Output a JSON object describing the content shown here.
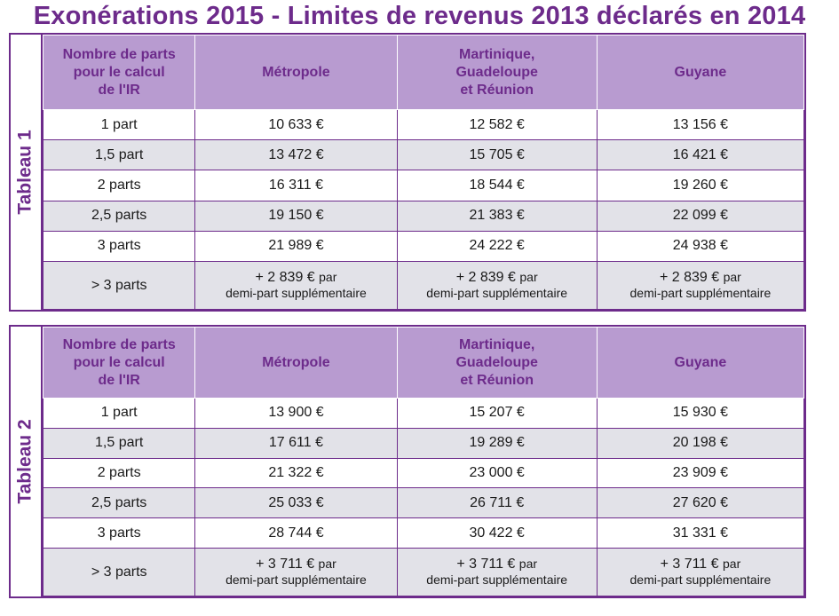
{
  "title": "Exonérations 2015 - Limites de revenus 2013 déclarés en 2014",
  "header": {
    "col1": [
      "Nombre de parts",
      "pour le calcul",
      "de l'IR"
    ],
    "col2": "Métropole",
    "col3": [
      "Martinique,",
      "Guadeloupe",
      "et Réunion"
    ],
    "col4": "Guyane"
  },
  "tables": [
    {
      "label": "Tableau 1",
      "rows": [
        {
          "parts": "1 part",
          "metropole": "10 633 €",
          "antilles": "12 582 €",
          "guyane": "13 156 €"
        },
        {
          "parts": "1,5 part",
          "metropole": "13 472 €",
          "antilles": "15 705 €",
          "guyane": "16 421 €"
        },
        {
          "parts": "2 parts",
          "metropole": "16 311 €",
          "antilles": "18 544 €",
          "guyane": "19 260 €"
        },
        {
          "parts": "2,5 parts",
          "metropole": "19 150 €",
          "antilles": "21 383 €",
          "guyane": "22 099 €"
        },
        {
          "parts": "3 parts",
          "metropole": "21 989 €",
          "antilles": "24 222 €",
          "guyane": "24 938 €"
        }
      ],
      "last": {
        "parts": "> 3 parts",
        "metropole": {
          "amount": "+ 2 839 €",
          "suffix": "par"
        },
        "antilles": {
          "amount": "+ 2 839 €",
          "suffix": "par"
        },
        "guyane": {
          "amount": "+ 2 839 €",
          "suffix": "par"
        },
        "note": "demi-part supplémentaire"
      }
    },
    {
      "label": "Tableau 2",
      "rows": [
        {
          "parts": "1 part",
          "metropole": "13 900 €",
          "antilles": "15 207 €",
          "guyane": "15 930 €"
        },
        {
          "parts": "1,5 part",
          "metropole": "17 611 €",
          "antilles": "19 289 €",
          "guyane": "20 198 €"
        },
        {
          "parts": "2 parts",
          "metropole": "21 322 €",
          "antilles": "23 000 €",
          "guyane": "23 909 €"
        },
        {
          "parts": "2,5 parts",
          "metropole": "25 033 €",
          "antilles": "26 711 €",
          "guyane": "27 620 €"
        },
        {
          "parts": "3 parts",
          "metropole": "28 744 €",
          "antilles": "30 422 €",
          "guyane": "31 331 €"
        }
      ],
      "last": {
        "parts": "> 3 parts",
        "metropole": {
          "amount": "+ 3 711 €",
          "suffix": "par"
        },
        "antilles": {
          "amount": "+ 3 711 €",
          "suffix": "par"
        },
        "guyane": {
          "amount": "+ 3 711 €",
          "suffix": "par"
        },
        "note": "demi-part supplémentaire"
      }
    }
  ],
  "colors": {
    "accent": "#6d2b8b",
    "header_bg": "#b89bd0",
    "stripe": "#e2e2e8"
  }
}
